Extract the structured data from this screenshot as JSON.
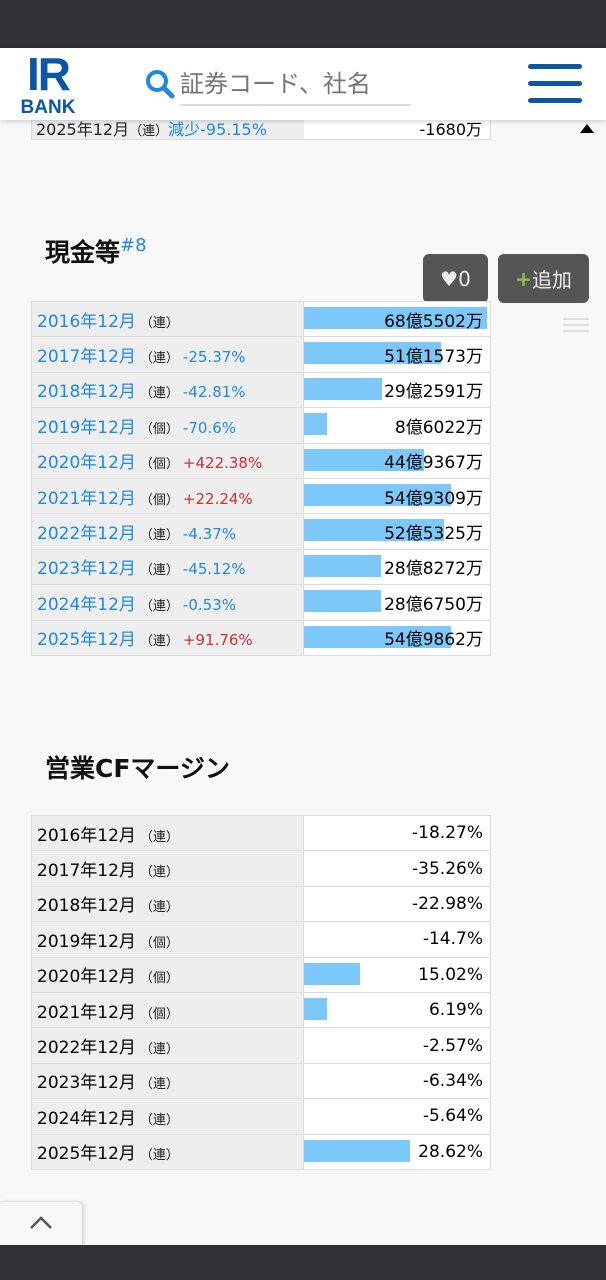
{
  "header": {
    "logo_top": "IR",
    "logo_bottom": "BANK",
    "search_placeholder": "証券コード、社名"
  },
  "prev_row": {
    "label": "2025年12月",
    "kind": "（連）",
    "change": "減少-95.15%",
    "value": "-1680万"
  },
  "cash": {
    "title": "現金等",
    "anchor": "#8",
    "like_count": "0",
    "add_label": "追加",
    "rows": [
      {
        "year": "2016年12月",
        "kind": "（連）",
        "change": "",
        "dir": "",
        "value": "68億5502万",
        "amount": 68.5502
      },
      {
        "year": "2017年12月",
        "kind": "（連）",
        "change": "-25.37%",
        "dir": "down",
        "value": "51億1573万",
        "amount": 51.1573
      },
      {
        "year": "2018年12月",
        "kind": "（連）",
        "change": "-42.81%",
        "dir": "down",
        "value": "29億2591万",
        "amount": 29.2591
      },
      {
        "year": "2019年12月",
        "kind": "（個）",
        "change": "-70.6%",
        "dir": "down",
        "value": "8億6022万",
        "amount": 8.6022
      },
      {
        "year": "2020年12月",
        "kind": "（個）",
        "change": "+422.38%",
        "dir": "up",
        "value": "44億9367万",
        "amount": 44.9367
      },
      {
        "year": "2021年12月",
        "kind": "（個）",
        "change": "+22.24%",
        "dir": "up",
        "value": "54億9309万",
        "amount": 54.9309
      },
      {
        "year": "2022年12月",
        "kind": "（連）",
        "change": "-4.37%",
        "dir": "down",
        "value": "52億5325万",
        "amount": 52.5325
      },
      {
        "year": "2023年12月",
        "kind": "（連）",
        "change": "-45.12%",
        "dir": "down",
        "value": "28億8272万",
        "amount": 28.8272
      },
      {
        "year": "2024年12月",
        "kind": "（連）",
        "change": "-0.53%",
        "dir": "down",
        "value": "28億6750万",
        "amount": 28.675
      },
      {
        "year": "2025年12月",
        "kind": "（連）",
        "change": "+91.76%",
        "dir": "up",
        "value": "54億9862万",
        "amount": 54.9862
      }
    ]
  },
  "cf_margin": {
    "title": "営業CFマージン",
    "rows": [
      {
        "year": "2016年12月",
        "kind": "（連）",
        "value": "-18.27%",
        "amount": -18.27
      },
      {
        "year": "2017年12月",
        "kind": "（連）",
        "value": "-35.26%",
        "amount": -35.26
      },
      {
        "year": "2018年12月",
        "kind": "（連）",
        "value": "-22.98%",
        "amount": -22.98
      },
      {
        "year": "2019年12月",
        "kind": "（個）",
        "value": "-14.7%",
        "amount": -14.7
      },
      {
        "year": "2020年12月",
        "kind": "（個）",
        "value": "15.02%",
        "amount": 15.02
      },
      {
        "year": "2021年12月",
        "kind": "（個）",
        "value": "6.19%",
        "amount": 6.19
      },
      {
        "year": "2022年12月",
        "kind": "（連）",
        "value": "-2.57%",
        "amount": -2.57
      },
      {
        "year": "2023年12月",
        "kind": "（連）",
        "value": "-6.34%",
        "amount": -6.34
      },
      {
        "year": "2024年12月",
        "kind": "（連）",
        "value": "-5.64%",
        "amount": -5.64
      },
      {
        "year": "2025年12月",
        "kind": "（連）",
        "value": "28.62%",
        "amount": 28.62
      }
    ]
  },
  "colors": {
    "brand": "#0d56a6",
    "link": "#1e88e5",
    "up": "#d32f2f",
    "bar": "#7cc8fb",
    "add_plus": "#8bc34a"
  }
}
